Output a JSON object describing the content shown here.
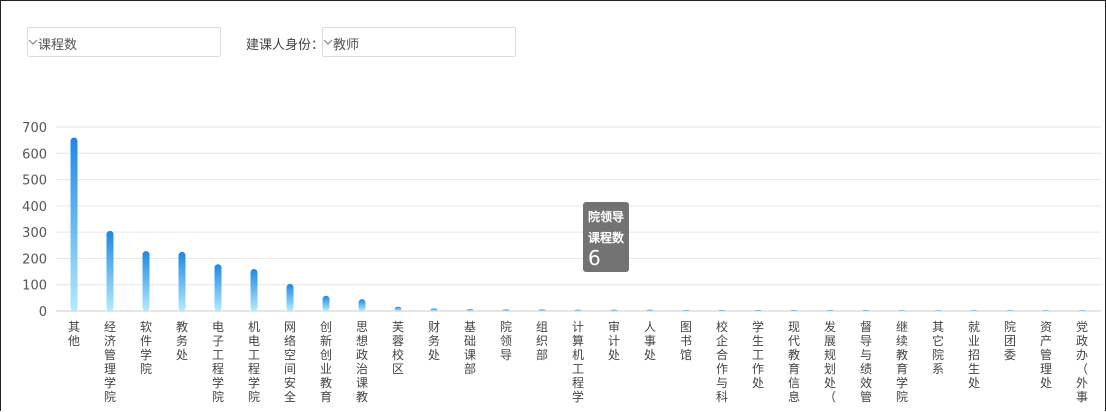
{
  "filters": {
    "metric": {
      "value": "课程数"
    },
    "identity": {
      "label": "建课人身份：",
      "value": "教师"
    }
  },
  "tooltip": {
    "category": "院领导",
    "metric": "课程数",
    "value": "6"
  },
  "chart_data": {
    "type": "bar",
    "ylim": [
      0,
      700
    ],
    "yticks": [
      0,
      100,
      200,
      300,
      400,
      500,
      600,
      700
    ],
    "grid": true,
    "categories": [
      "其他",
      "经济管理学院",
      "软件学院",
      "教务处",
      "电子工程学院",
      "机电工程学院",
      "网络空间安全…",
      "创新创业教育…",
      "思想政治课教…",
      "芙蓉校区",
      "财务处",
      "基础课部",
      "院领导",
      "组织部",
      "计算机工程学…",
      "审计处",
      "人事处",
      "图书馆",
      "校企合作与科…",
      "学生工作处",
      "现代教育信息…",
      "发展规划处（…",
      "督导与绩效管…",
      "继续教育学院",
      "其它院系",
      "就业招生处",
      "院团委",
      "资产管理处",
      "党政办（外事…"
    ],
    "values": [
      660,
      305,
      228,
      225,
      178,
      160,
      103,
      58,
      45,
      16,
      10,
      7,
      6,
      6,
      5,
      5,
      5,
      4,
      4,
      4,
      4,
      4,
      4,
      3,
      3,
      3,
      3,
      3,
      3
    ]
  },
  "colors": {
    "bar_top": "#1e88e5",
    "bar_bottom": "#b3eaff",
    "grid": "#e6e6e6"
  },
  "icons": {
    "dropdown": "chevron-down-icon"
  }
}
